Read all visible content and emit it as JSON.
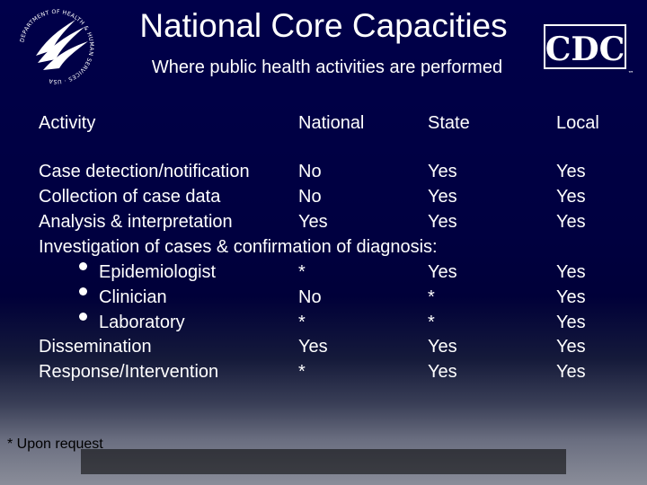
{
  "slide": {
    "title": "National Core Capacities",
    "subtitle": "Where public health activities are performed",
    "footnote": "* Upon request"
  },
  "logos": {
    "left_icon": "hhs-eagle-seal-icon",
    "left_seal_text": "DEPARTMENT OF HEALTH & HUMAN SERVICES · USA",
    "right_icon": "cdc-logo-icon",
    "right_logo_text": "CDC"
  },
  "table": {
    "headers": [
      "Activity",
      "National",
      "State",
      "Local"
    ],
    "rows": [
      {
        "activity": "Case detection/notification",
        "national": "No",
        "state": "Yes",
        "local": "Yes"
      },
      {
        "activity": "Collection of case data",
        "national": "No",
        "state": "Yes",
        "local": "Yes"
      },
      {
        "activity": "Analysis & interpretation",
        "national": "Yes",
        "state": "Yes",
        "local": "Yes"
      },
      {
        "activity": "Investigation of cases & confirmation of diagnosis:"
      },
      {
        "activity": "Epidemiologist",
        "national": "*",
        "state": "Yes",
        "local": "Yes"
      },
      {
        "activity": "Clinician",
        "national": "No",
        "state": "*",
        "local": "Yes"
      },
      {
        "activity": "Laboratory",
        "national": "*",
        "state": "*",
        "local": "Yes"
      },
      {
        "activity": "Dissemination",
        "national": "Yes",
        "state": "Yes",
        "local": "Yes"
      },
      {
        "activity": "Response/Intervention",
        "national": "*",
        "state": "Yes",
        "local": "Yes"
      }
    ]
  }
}
